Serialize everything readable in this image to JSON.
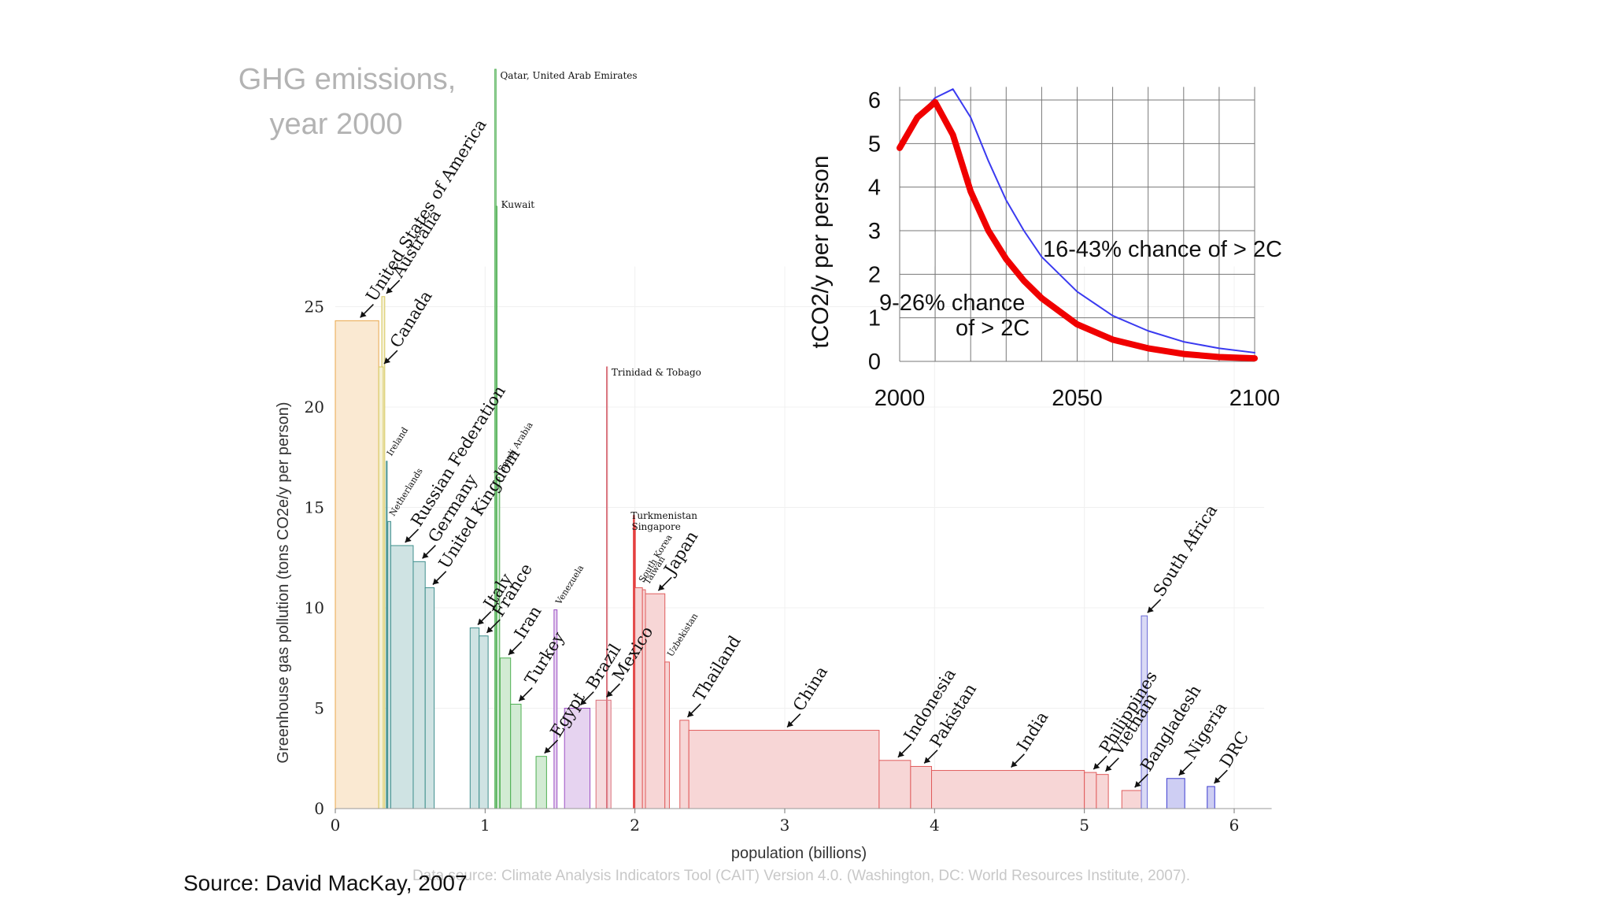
{
  "slide": {
    "heading": [
      "GHG emissions,",
      "year 2000"
    ],
    "source": "Source: David MacKay, 2007"
  },
  "chart_data": [
    {
      "type": "bar",
      "variant": "variable-width bars (cumulative population vs per-capita emissions)",
      "xlabel": "population (billions)",
      "ylabel": "Greenhouse gas pollution (tons CO2e/y per person)",
      "xlim": [
        0,
        6.1
      ],
      "ylim": [
        0,
        25
      ],
      "xticks": [
        0,
        1,
        2,
        3,
        4,
        5,
        6
      ],
      "yticks": [
        0,
        5,
        10,
        15,
        20,
        25
      ],
      "grid": false,
      "footnote": "Data source: Climate Analysis Indicators Tool (CAIT) Version 4.0. (Washington, DC: World Resources Institute, 2007).",
      "countries": [
        {
          "name": "Australia",
          "x": 0.31,
          "w": 0.02,
          "y": 25.5,
          "color": "#d7c85c"
        },
        {
          "name": "United States of America",
          "x": 0.0,
          "w": 0.29,
          "y": 24.3,
          "color": "#e9a74b"
        },
        {
          "name": "Canada",
          "x": 0.29,
          "w": 0.03,
          "y": 22.0,
          "color": "#d7c85c"
        },
        {
          "name": "Ireland",
          "x": 0.34,
          "w": 0.005,
          "y": 17.3,
          "color": "#3f8f8d"
        },
        {
          "name": "Netherlands",
          "x": 0.35,
          "w": 0.02,
          "y": 14.3,
          "color": "#3f8f8d"
        },
        {
          "name": "Russian Federation",
          "x": 0.37,
          "w": 0.15,
          "y": 13.1,
          "color": "#3f8f8d"
        },
        {
          "name": "Germany",
          "x": 0.52,
          "w": 0.08,
          "y": 12.3,
          "color": "#3f8f8d"
        },
        {
          "name": "United Kingdom",
          "x": 0.6,
          "w": 0.06,
          "y": 11.0,
          "color": "#3f8f8d"
        },
        {
          "name": "Italy",
          "x": 0.9,
          "w": 0.06,
          "y": 9.0,
          "color": "#3f8f8d"
        },
        {
          "name": "France",
          "x": 0.96,
          "w": 0.06,
          "y": 8.6,
          "color": "#3f8f8d"
        },
        {
          "name": "Iran",
          "x": 1.1,
          "w": 0.07,
          "y": 7.5,
          "color": "#4caf50"
        },
        {
          "name": "Turkey",
          "x": 1.17,
          "w": 0.07,
          "y": 5.2,
          "color": "#4caf50"
        },
        {
          "name": "Egypt",
          "x": 1.34,
          "w": 0.07,
          "y": 2.6,
          "color": "#4caf50"
        },
        {
          "name": "Brazil",
          "x": 1.53,
          "w": 0.17,
          "y": 5.0,
          "color": "#9c4fc4"
        },
        {
          "name": "Mexico",
          "x": 1.74,
          "w": 0.1,
          "y": 5.4,
          "color": "#d9707a"
        },
        {
          "name": "Thailand",
          "x": 2.3,
          "w": 0.06,
          "y": 4.4,
          "color": "#e05c5c"
        },
        {
          "name": "China",
          "x": 2.36,
          "w": 1.27,
          "y": 3.9,
          "color": "#e05c5c"
        },
        {
          "name": "Indonesia",
          "x": 3.63,
          "w": 0.21,
          "y": 2.4,
          "color": "#e05c5c"
        },
        {
          "name": "Pakistan",
          "x": 3.84,
          "w": 0.14,
          "y": 2.1,
          "color": "#e05c5c"
        },
        {
          "name": "India",
          "x": 3.98,
          "w": 1.02,
          "y": 1.9,
          "color": "#e05c5c"
        },
        {
          "name": "Philippines",
          "x": 5.0,
          "w": 0.08,
          "y": 1.8,
          "color": "#e05c5c"
        },
        {
          "name": "Vietnam",
          "x": 5.08,
          "w": 0.08,
          "y": 1.7,
          "color": "#e05c5c"
        },
        {
          "name": "Bangladesh",
          "x": 5.25,
          "w": 0.13,
          "y": 0.9,
          "color": "#e05c5c"
        },
        {
          "name": "South Africa",
          "x": 5.38,
          "w": 0.04,
          "y": 9.6,
          "color": "#6a6ad6"
        },
        {
          "name": "Nigeria",
          "x": 5.55,
          "w": 0.12,
          "y": 1.5,
          "color": "#3b3bd0"
        },
        {
          "name": "DRC",
          "x": 5.82,
          "w": 0.05,
          "y": 1.1,
          "color": "#3b3bd0"
        },
        {
          "name": "Qatar, United Arab Emirates",
          "x": 1.065,
          "w": 0.008,
          "y": 37,
          "color": "#4caf50"
        },
        {
          "name": "Kuwait",
          "x": 1.073,
          "w": 0.004,
          "y": 30,
          "color": "#4caf50"
        },
        {
          "name": "Saudi Arabia",
          "x": 1.077,
          "w": 0.02,
          "y": 16.5,
          "color": "#4caf50"
        },
        {
          "name": "Venezuela",
          "x": 1.46,
          "w": 0.02,
          "y": 9.9,
          "color": "#9c4fc4"
        },
        {
          "name": "Trinidad & Tobago",
          "x": 1.81,
          "w": 0.004,
          "y": 22.0,
          "color": "#d9707a"
        },
        {
          "name": "Turkmenistan",
          "x": 1.99,
          "w": 0.006,
          "y": 14.6,
          "color": "#e02020"
        },
        {
          "name": "Singapore",
          "x": 1.996,
          "w": 0.006,
          "y": 14.1,
          "color": "#e02020"
        },
        {
          "name": "South Korea",
          "x": 2.0,
          "w": 0.05,
          "y": 11.0,
          "color": "#e05c5c"
        },
        {
          "name": "Japan",
          "x": 2.07,
          "w": 0.13,
          "y": 10.7,
          "color": "#e05c5c"
        },
        {
          "name": "Taiwan",
          "x": 2.05,
          "w": 0.02,
          "y": 10.9,
          "color": "#e05c5c"
        },
        {
          "name": "Uzbekistan",
          "x": 2.2,
          "w": 0.03,
          "y": 7.3,
          "color": "#e05c5c"
        }
      ]
    },
    {
      "type": "line",
      "xlabel": "",
      "ylabel": "tCO2/y per person",
      "xlim": [
        2000,
        2100
      ],
      "ylim": [
        0,
        6
      ],
      "xticks": [
        2000,
        2050,
        2100
      ],
      "yticks": [
        0,
        1,
        2,
        3,
        4,
        5,
        6
      ],
      "grid": true,
      "series": [
        {
          "name": "16-43% chance of > 2C",
          "color": "#3a3af0",
          "x": [
            2000,
            2005,
            2010,
            2015,
            2020,
            2025,
            2030,
            2035,
            2040,
            2050,
            2060,
            2070,
            2080,
            2090,
            2100
          ],
          "y": [
            4.9,
            5.6,
            6.05,
            6.25,
            5.6,
            4.6,
            3.7,
            3.0,
            2.4,
            1.6,
            1.05,
            0.7,
            0.45,
            0.3,
            0.2
          ]
        },
        {
          "name": "9-26% chance of > 2C",
          "color": "#f00000",
          "x": [
            2000,
            2005,
            2010,
            2015,
            2020,
            2025,
            2030,
            2035,
            2040,
            2050,
            2060,
            2070,
            2080,
            2090,
            2100
          ],
          "y": [
            4.9,
            5.6,
            5.95,
            5.2,
            3.9,
            3.0,
            2.35,
            1.85,
            1.45,
            0.85,
            0.5,
            0.3,
            0.17,
            0.1,
            0.07
          ]
        }
      ],
      "annotations": [
        "16-43% chance of > 2C",
        "9-26% chance",
        "of > 2C"
      ]
    }
  ]
}
